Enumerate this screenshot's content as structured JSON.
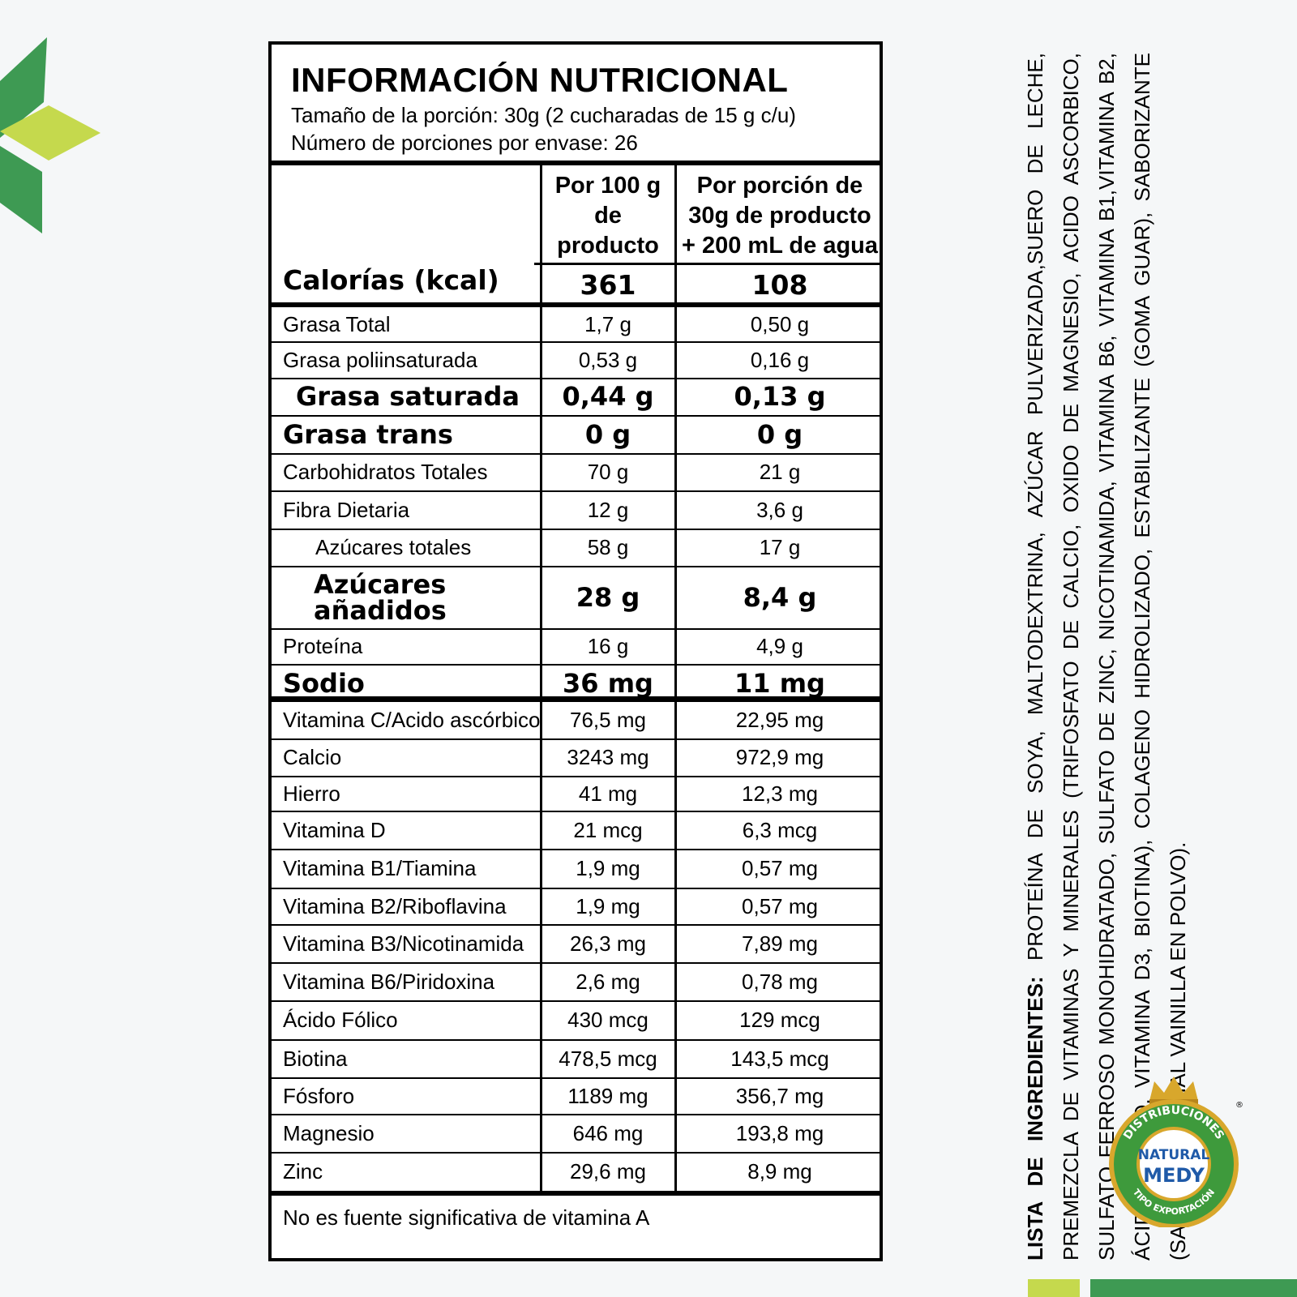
{
  "panel": {
    "title": "INFORMACIÓN NUTRICIONAL",
    "serving_size": "Tamaño de la porción: 30g (2 cucharadas de 15 g c/u)",
    "servings_per_container": "Número de porciones por envase: 26",
    "col1_header": [
      "Por 100 g",
      "de producto"
    ],
    "col2_header": [
      "Por porción de",
      "30g de producto",
      "+ 200 mL de agua"
    ],
    "calories": {
      "label": "Calorías (kcal)",
      "per100": "361",
      "perserving": "108"
    },
    "rows": [
      {
        "label": "Grasa Total",
        "per100": "1,7 g",
        "perserving": "0,50 g"
      },
      {
        "label": "Grasa poliinsaturada",
        "per100": "0,53 g",
        "perserving": "0,16 g"
      },
      {
        "label": "Grasa saturada",
        "per100": "0,44 g",
        "perserving": "0,13 g"
      },
      {
        "label": "Grasa trans",
        "per100": "0 g",
        "perserving": "0 g"
      },
      {
        "label": "Carbohidratos Totales",
        "per100": "70 g",
        "perserving": "21 g"
      },
      {
        "label": "Fibra Dietaria",
        "per100": "12 g",
        "perserving": "3,6 g"
      },
      {
        "label": "Azúcares totales",
        "per100": "58 g",
        "perserving": "17 g"
      },
      {
        "label": "Azúcares añadidos",
        "label_lines": [
          "Azúcares",
          "añadidos"
        ],
        "per100": "28 g",
        "perserving": "8,4 g"
      },
      {
        "label": "Proteína",
        "per100": "16 g",
        "perserving": "4,9 g"
      },
      {
        "label": "Sodio",
        "per100": "36 mg",
        "perserving": "11 mg"
      }
    ],
    "vitamins": [
      {
        "label": "Vitamina C/Acido ascórbico",
        "per100": "76,5 mg",
        "perserving": "22,95 mg"
      },
      {
        "label": "Calcio",
        "per100": "3243 mg",
        "perserving": "972,9 mg"
      },
      {
        "label": "Hierro",
        "per100": "41 mg",
        "perserving": "12,3 mg"
      },
      {
        "label": "Vitamina D",
        "per100": "21 mcg",
        "perserving": "6,3 mcg"
      },
      {
        "label": "Vitamina B1/Tiamina",
        "per100": "1,9 mg",
        "perserving": "0,57 mg"
      },
      {
        "label": "Vitamina B2/Riboflavina",
        "per100": "1,9 mg",
        "perserving": "0,57 mg"
      },
      {
        "label": "Vitamina B3/Nicotinamida",
        "per100": "26,3 mg",
        "perserving": "7,89 mg"
      },
      {
        "label": "Vitamina B6/Piridoxina",
        "per100": "2,6 mg",
        "perserving": "0,78 mg"
      },
      {
        "label": "Ácido Fólico",
        "per100": "430 mcg",
        "perserving": "129 mcg"
      },
      {
        "label": "Biotina",
        "per100": "478,5 mcg",
        "perserving": "143,5 mcg"
      },
      {
        "label": "Fósforo",
        "per100": "1189 mg",
        "perserving": "356,7 mg"
      },
      {
        "label": "Magnesio",
        "per100": "646 mg",
        "perserving": "193,8 mg"
      },
      {
        "label": "Zinc",
        "per100": "29,6 mg",
        "perserving": "8,9 mg"
      }
    ],
    "footer": "No es fuente significativa de vitamina A"
  },
  "ingredients": {
    "heading": "LISTA DE INGREDIENTES:",
    "text": "PROTEÍNA DE SOYA, MALTODEXTRINA, AZÚCAR PULVERIZADA,SUERO DE LECHE, PREMEZCLA DE VITAMINAS Y MINERALES (TRIFOSFATO DE CALCIO, OXIDO DE MAGNESIO, ACIDO ASCORBICO, SULFATO FERROSO MONOHIDRATADO, SULFATO DE ZINC, NICOTINAMIDA, VITAMINA B6, VITAMINA B1,VITAMINA B2, ÁCIDO FÓLICO, VITAMINA D3, BIOTINA), COLAGENO HIDROLIZADO, ESTABILIZANTE (GOMA GUAR), SABORIZANTE (SABOR ARTIFICIAL VAINILLA EN POLVO)."
  },
  "logo": {
    "top_text": "DISTRIBUCIONES",
    "name_line1": "NATURAL",
    "name_line2": "MEDY",
    "bottom_text": "TIPO EXPORTACIÓN",
    "registered": "®"
  },
  "colors": {
    "leaf_dark": "#3e9a53",
    "leaf_light": "#c5d94d",
    "logo_green": "#3e9a3c",
    "logo_gold": "#d8a72c",
    "logo_blue": "#1f5aa8"
  }
}
